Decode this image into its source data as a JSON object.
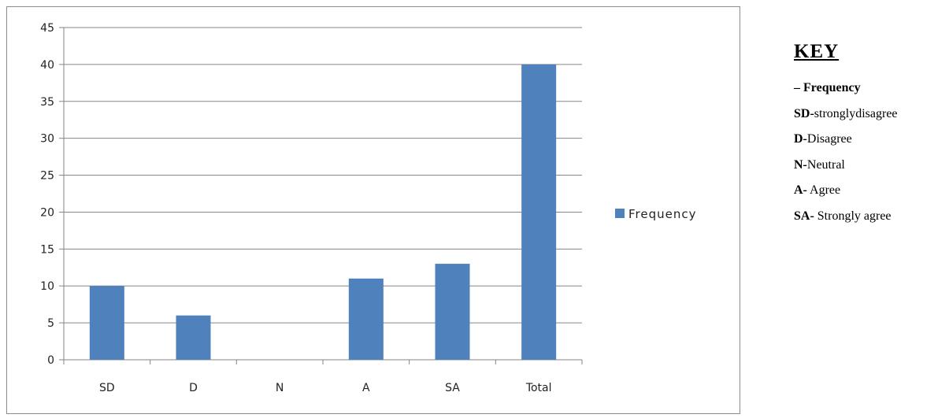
{
  "chart_data": {
    "type": "bar",
    "categories": [
      "SD",
      "D",
      "N",
      "A",
      "SA",
      "Total"
    ],
    "series": [
      {
        "name": "Frequency",
        "values": [
          10,
          6,
          0,
          11,
          13,
          40
        ]
      }
    ],
    "ylim": [
      0,
      45
    ],
    "yticks": [
      "0",
      "5",
      "10",
      "15",
      "20",
      "25",
      "30",
      "35",
      "40",
      "45"
    ],
    "grid": true,
    "legend_position": "right",
    "colors": {
      "bar": "#4f81bd",
      "grid": "#868686",
      "axis": "#868686"
    }
  },
  "key": {
    "title": "KEY",
    "items": [
      {
        "abbr": "",
        "desc": "– Frequency",
        "desc_bold": true
      },
      {
        "abbr": "SD-",
        "desc": "stronglydisagree",
        "desc_bold": false
      },
      {
        "abbr": "D-",
        "desc": "Disagree",
        "desc_bold": false
      },
      {
        "abbr": "N-",
        "desc": "Neutral",
        "desc_bold": false
      },
      {
        "abbr": "A-",
        "desc": " Agree",
        "desc_bold": false
      },
      {
        "abbr": "SA-",
        "desc": " Strongly agree",
        "desc_bold": false
      }
    ]
  }
}
